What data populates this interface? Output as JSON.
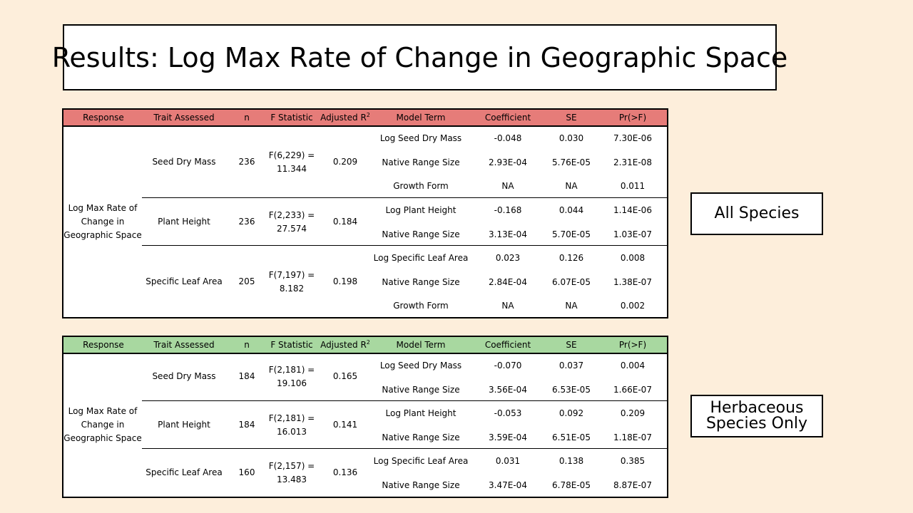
{
  "title": "Results: Log Max Rate of Change in Geographic Space",
  "headers": {
    "response": "Response",
    "trait": "Trait Assessed",
    "n": "n",
    "fstat": "F Statistic",
    "adjr2": "Adjusted R",
    "adjr2_sup": "2",
    "term": "Model Term",
    "coef": "Coefficient",
    "se": "SE",
    "p": "Pr(>F)"
  },
  "tables": [
    {
      "label": "All Species",
      "response": [
        "Log Max Rate of",
        "Change in",
        "Geographic Space"
      ],
      "groups": [
        {
          "trait": "Seed Dry Mass",
          "n": "236",
          "f": [
            "F(6,229) =",
            "11.344"
          ],
          "adjr2": "0.209",
          "rows": [
            {
              "term": "Log Seed Dry Mass",
              "coef": "-0.048",
              "se": "0.030",
              "p": "7.30E-06"
            },
            {
              "term": "Native Range Size",
              "coef": "2.93E-04",
              "se": "5.76E-05",
              "p": "2.31E-08"
            },
            {
              "term": "Growth Form",
              "coef": "NA",
              "se": "NA",
              "p": "0.011"
            }
          ]
        },
        {
          "trait": "Plant Height",
          "n": "236",
          "f": [
            "F(2,233) =",
            "27.574"
          ],
          "adjr2": "0.184",
          "rows": [
            {
              "term": "Log Plant Height",
              "coef": "-0.168",
              "se": "0.044",
              "p": "1.14E-06"
            },
            {
              "term": "Native Range Size",
              "coef": "3.13E-04",
              "se": "5.70E-05",
              "p": "1.03E-07"
            }
          ]
        },
        {
          "trait": "Specific Leaf Area",
          "n": "205",
          "f": [
            "F(7,197) =",
            "8.182"
          ],
          "adjr2": "0.198",
          "rows": [
            {
              "term": "Log Specific Leaf Area",
              "coef": "0.023",
              "se": "0.126",
              "p": "0.008"
            },
            {
              "term": "Native Range Size",
              "coef": "2.84E-04",
              "se": "6.07E-05",
              "p": "1.38E-07"
            },
            {
              "term": "Growth Form",
              "coef": "NA",
              "se": "NA",
              "p": "0.002"
            }
          ]
        }
      ]
    },
    {
      "label": "Herbaceous Species Only",
      "label_lines": [
        "Herbaceous",
        "Species Only"
      ],
      "response": [
        "Log Max Rate of",
        "Change in",
        "Geographic Space"
      ],
      "groups": [
        {
          "trait": "Seed Dry Mass",
          "n": "184",
          "f": [
            "F(2,181) =",
            "19.106"
          ],
          "adjr2": "0.165",
          "rows": [
            {
              "term": "Log Seed Dry Mass",
              "coef": "-0.070",
              "se": "0.037",
              "p": "0.004"
            },
            {
              "term": "Native Range Size",
              "coef": "3.56E-04",
              "se": "6.53E-05",
              "p": "1.66E-07"
            }
          ]
        },
        {
          "trait": "Plant Height",
          "n": "184",
          "f": [
            "F(2,181) =",
            "16.013"
          ],
          "adjr2": "0.141",
          "rows": [
            {
              "term": "Log Plant Height",
              "coef": "-0.053",
              "se": "0.092",
              "p": "0.209"
            },
            {
              "term": "Native Range Size",
              "coef": "3.59E-04",
              "se": "6.51E-05",
              "p": "1.18E-07"
            }
          ]
        },
        {
          "trait": "Specific Leaf Area",
          "n": "160",
          "f": [
            "F(2,157) =",
            "13.483"
          ],
          "adjr2": "0.136",
          "rows": [
            {
              "term": "Log Specific Leaf Area",
              "coef": "0.031",
              "se": "0.138",
              "p": "0.385"
            },
            {
              "term": "Native Range Size",
              "coef": "3.47E-04",
              "se": "6.78E-05",
              "p": "8.87E-07"
            }
          ]
        }
      ]
    }
  ],
  "colors": {
    "background": "#fdeedb",
    "header_all_species": "#e67c79",
    "header_herbaceous": "#a8d8a0"
  }
}
